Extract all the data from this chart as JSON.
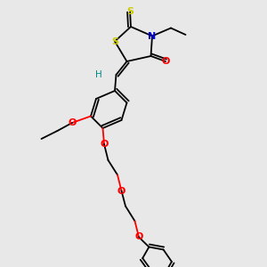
{
  "bg_color": "#e8e8e8",
  "fig_size": [
    3.0,
    3.0
  ],
  "dpi": 100,
  "colors": {
    "S": "#cccc00",
    "N": "#0000cc",
    "O": "#ff0000",
    "C": "#000000",
    "H": "#008888",
    "bond": "#000000"
  },
  "xlim": [
    0,
    1
  ],
  "ylim": [
    0,
    1
  ]
}
